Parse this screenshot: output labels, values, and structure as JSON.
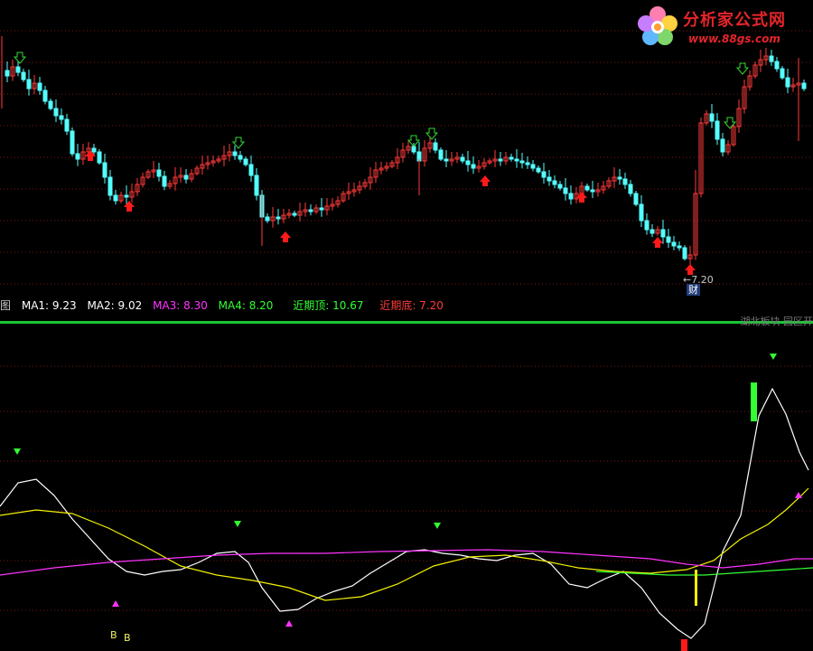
{
  "legend": {
    "prefix": "图",
    "ma1": "MA1: 9.23",
    "ma2": "MA2: 9.02",
    "ma3": "MA3: 8.30",
    "ma4": "MA4: 8.20",
    "recent_top": "近期顶: 10.67",
    "recent_bottom": "近期底: 7.20"
  },
  "region_tag": "湖北板块  园区开",
  "logo": {
    "brand": "分析家公式网",
    "site": "www.88gs.com"
  },
  "current_price_label": "←7.20",
  "finance_badge": "财",
  "b_marks": [
    "B",
    "B"
  ],
  "colors": {
    "up_candle": "#ff3a3a",
    "down_candle": "#54ffff",
    "ma1": "#ffffff",
    "ma2": "#f2f200",
    "ma3": "#ff33ff",
    "ma4": "#33ff33",
    "divider": "#19c832",
    "grid": "#7a1616",
    "sell_arrow": "#33d933",
    "buy_arrow": "#ff1a1a"
  }
}
